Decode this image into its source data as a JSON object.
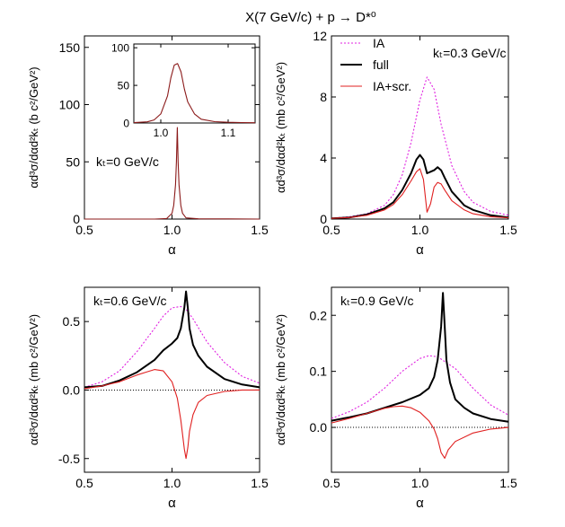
{
  "figure": {
    "title": "X(7 GeV/c) + p → D*⁰"
  },
  "chart_data": [
    {
      "id": "tl",
      "type": "line",
      "xlim": [
        0.5,
        1.5
      ],
      "ylim": [
        0,
        160
      ],
      "xticks": [
        0.5,
        1.0,
        1.5
      ],
      "xtick_labels": [
        "0.5",
        "1.0",
        "1.5"
      ],
      "yticks": [
        0,
        50,
        100,
        150
      ],
      "ytick_labels": [
        "0",
        "50",
        "100",
        "150"
      ],
      "xlabel": "α",
      "ylabel": "αd³σ/dαd²kₜ (b c²/GeV²)",
      "annotation": "kₜ=0 GeV/c",
      "series": [
        {
          "color": "#8b1a1a",
          "x": [
            0.5,
            0.9,
            0.97,
            1.0,
            1.01,
            1.02,
            1.025,
            1.03,
            1.035,
            1.04,
            1.05,
            1.06,
            1.08,
            1.15,
            1.5
          ],
          "y": [
            0,
            0,
            0.5,
            5,
            12,
            30,
            50,
            80,
            50,
            30,
            12,
            5,
            1,
            0.2,
            0
          ]
        }
      ],
      "inset": {
        "xlim": [
          0.96,
          1.14
        ],
        "ylim": [
          0,
          105
        ],
        "xticks": [
          1.0,
          1.1
        ],
        "xtick_labels": [
          "1.0",
          "1.1"
        ],
        "yticks": [
          0,
          50,
          100
        ],
        "ytick_labels": [
          "0",
          "50",
          "100"
        ],
        "series": [
          {
            "color": "#8b1a1a",
            "x": [
              0.96,
              0.98,
              0.99,
              1.0,
              1.01,
              1.015,
              1.02,
              1.025,
              1.03,
              1.035,
              1.04,
              1.05,
              1.06,
              1.08,
              1.1,
              1.12,
              1.14
            ],
            "y": [
              0.5,
              1.5,
              4,
              12,
              36,
              60,
              77,
              79,
              68,
              45,
              28,
              12,
              5,
              1.8,
              1,
              0.6,
              0.3
            ]
          }
        ]
      }
    },
    {
      "id": "tr",
      "type": "line",
      "xlim": [
        0.5,
        1.5
      ],
      "ylim": [
        0,
        12
      ],
      "xticks": [
        0.5,
        1.0,
        1.5
      ],
      "xtick_labels": [
        "0.5",
        "1.0",
        "1.5"
      ],
      "yticks": [
        0,
        4,
        8,
        12
      ],
      "ytick_labels": [
        "0",
        "4",
        "8",
        "12"
      ],
      "xlabel": "α",
      "ylabel": "αd³σ/dαd²kₜ (mb c²/GeV²)",
      "annotation": "kₜ=0.3 GeV/c",
      "legend": {
        "placement": "top-left"
      },
      "series": [
        {
          "name": "IA",
          "color": "#e020e0",
          "dash": true,
          "x": [
            0.5,
            0.6,
            0.7,
            0.8,
            0.85,
            0.9,
            0.95,
            1.0,
            1.04,
            1.08,
            1.12,
            1.18,
            1.25,
            1.3,
            1.4,
            1.5
          ],
          "y": [
            0.05,
            0.15,
            0.35,
            0.9,
            1.6,
            2.9,
            5.0,
            7.8,
            9.3,
            8.5,
            6.2,
            3.5,
            1.8,
            1.1,
            0.5,
            0.25
          ]
        },
        {
          "name": "full",
          "color": "#000000",
          "width": 2,
          "x": [
            0.5,
            0.6,
            0.7,
            0.8,
            0.85,
            0.9,
            0.95,
            0.98,
            1.0,
            1.02,
            1.04,
            1.06,
            1.08,
            1.1,
            1.12,
            1.14,
            1.18,
            1.25,
            1.3,
            1.4,
            1.5
          ],
          "y": [
            0.05,
            0.1,
            0.3,
            0.7,
            1.1,
            1.9,
            3.0,
            3.9,
            4.2,
            3.9,
            3.0,
            3.1,
            3.2,
            3.4,
            3.2,
            2.7,
            1.8,
            0.9,
            0.6,
            0.25,
            0.1
          ]
        },
        {
          "name": "IA+scr.",
          "color": "#e02020",
          "x": [
            0.5,
            0.6,
            0.7,
            0.8,
            0.85,
            0.9,
            0.95,
            0.98,
            1.0,
            1.02,
            1.04,
            1.06,
            1.08,
            1.1,
            1.12,
            1.14,
            1.18,
            1.25,
            1.3,
            1.4,
            1.5
          ],
          "y": [
            0.05,
            0.1,
            0.25,
            0.6,
            0.95,
            1.6,
            2.5,
            3.1,
            3.3,
            2.6,
            0.45,
            1.0,
            2.1,
            2.4,
            2.3,
            1.9,
            1.2,
            0.6,
            0.35,
            0.15,
            0.08
          ]
        }
      ]
    },
    {
      "id": "bl",
      "type": "line",
      "xlim": [
        0.5,
        1.5
      ],
      "ylim": [
        -0.6,
        0.75
      ],
      "xticks": [
        0.5,
        1.0,
        1.5
      ],
      "xtick_labels": [
        "0.5",
        "1.0",
        "1.5"
      ],
      "yticks": [
        -0.5,
        0.0,
        0.5
      ],
      "ytick_labels": [
        "-0.5",
        "0.0",
        "0.5"
      ],
      "xlabel": "α",
      "ylabel": "αd³σ/dαd²kₜ (mb c²/GeV²)",
      "annotation": "kₜ=0.6 GeV/c",
      "zero_line": true,
      "series": [
        {
          "color": "#e020e0",
          "dash": true,
          "x": [
            0.5,
            0.6,
            0.7,
            0.8,
            0.9,
            0.95,
            1.0,
            1.05,
            1.08,
            1.12,
            1.2,
            1.3,
            1.4,
            1.5
          ],
          "y": [
            0.02,
            0.06,
            0.14,
            0.28,
            0.45,
            0.54,
            0.6,
            0.61,
            0.59,
            0.52,
            0.35,
            0.2,
            0.1,
            0.05
          ]
        },
        {
          "color": "#000000",
          "width": 2,
          "x": [
            0.5,
            0.6,
            0.7,
            0.8,
            0.9,
            0.95,
            1.0,
            1.03,
            1.05,
            1.07,
            1.08,
            1.09,
            1.1,
            1.12,
            1.15,
            1.2,
            1.3,
            1.4,
            1.5
          ],
          "y": [
            0.02,
            0.03,
            0.07,
            0.13,
            0.22,
            0.29,
            0.34,
            0.38,
            0.45,
            0.6,
            0.72,
            0.6,
            0.45,
            0.33,
            0.25,
            0.17,
            0.08,
            0.04,
            0.02
          ]
        },
        {
          "color": "#e02020",
          "x": [
            0.5,
            0.6,
            0.7,
            0.8,
            0.85,
            0.9,
            0.95,
            1.0,
            1.03,
            1.05,
            1.07,
            1.08,
            1.09,
            1.1,
            1.12,
            1.15,
            1.2,
            1.3,
            1.4,
            1.5
          ],
          "y": [
            0.01,
            0.03,
            0.06,
            0.11,
            0.13,
            0.15,
            0.14,
            0.06,
            -0.06,
            -0.22,
            -0.43,
            -0.5,
            -0.42,
            -0.3,
            -0.18,
            -0.09,
            -0.04,
            -0.01,
            0.0,
            0.0
          ]
        }
      ]
    },
    {
      "id": "br",
      "type": "line",
      "xlim": [
        0.5,
        1.5
      ],
      "ylim": [
        -0.08,
        0.25
      ],
      "xticks": [
        0.5,
        1.0,
        1.5
      ],
      "xtick_labels": [
        "0.5",
        "1.0",
        "1.5"
      ],
      "yticks": [
        0.0,
        0.1,
        0.2
      ],
      "ytick_labels": [
        "0.0",
        "0.1",
        "0.2"
      ],
      "xlabel": "α",
      "ylabel": "αd³σ/dαd²kₜ (mb c²/GeV²)",
      "annotation": "kₜ=0.9 GeV/c",
      "zero_line": true,
      "series": [
        {
          "color": "#e020e0",
          "dash": true,
          "x": [
            0.5,
            0.6,
            0.7,
            0.8,
            0.9,
            1.0,
            1.05,
            1.1,
            1.2,
            1.3,
            1.4,
            1.5
          ],
          "y": [
            0.016,
            0.028,
            0.045,
            0.07,
            0.1,
            0.123,
            0.128,
            0.126,
            0.105,
            0.07,
            0.04,
            0.022
          ]
        },
        {
          "color": "#000000",
          "width": 2,
          "x": [
            0.5,
            0.6,
            0.7,
            0.8,
            0.9,
            1.0,
            1.05,
            1.08,
            1.1,
            1.12,
            1.13,
            1.14,
            1.15,
            1.17,
            1.2,
            1.25,
            1.3,
            1.4,
            1.5
          ],
          "y": [
            0.012,
            0.018,
            0.025,
            0.035,
            0.045,
            0.058,
            0.07,
            0.09,
            0.12,
            0.18,
            0.24,
            0.18,
            0.12,
            0.08,
            0.05,
            0.035,
            0.025,
            0.015,
            0.01
          ]
        },
        {
          "color": "#e02020",
          "x": [
            0.5,
            0.6,
            0.7,
            0.8,
            0.85,
            0.9,
            0.95,
            1.0,
            1.05,
            1.08,
            1.1,
            1.12,
            1.14,
            1.16,
            1.2,
            1.3,
            1.4,
            1.5
          ],
          "y": [
            0.008,
            0.016,
            0.025,
            0.034,
            0.037,
            0.038,
            0.035,
            0.027,
            0.012,
            -0.003,
            -0.02,
            -0.045,
            -0.055,
            -0.04,
            -0.025,
            -0.01,
            -0.003,
            0.0
          ]
        }
      ]
    }
  ]
}
